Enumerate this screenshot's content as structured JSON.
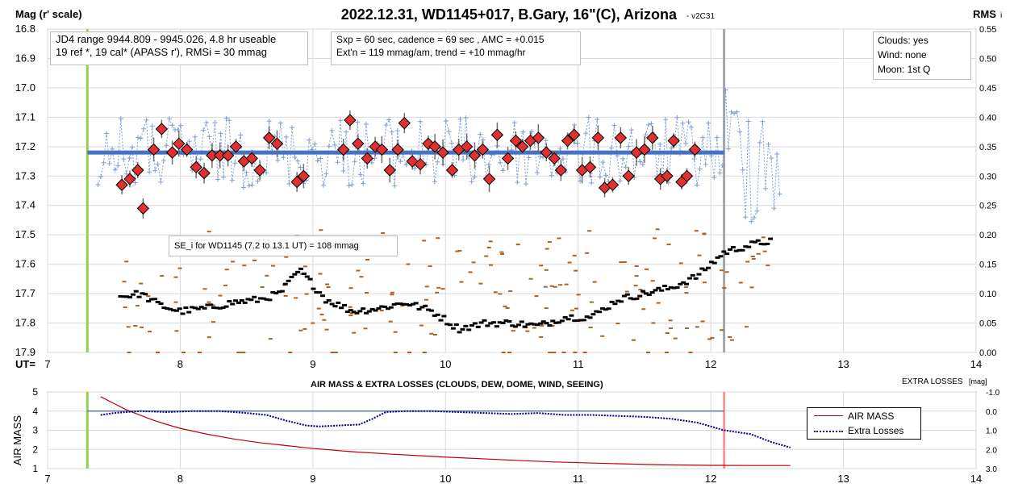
{
  "title": "2022.12.31, WD1145+017, B.Gary, 16\"(C), Arizona",
  "version": "- v2C31",
  "y_label_left": "Mag (r' scale)",
  "y_label_right": "RMS",
  "y_label_right_sub": "i",
  "x_axis_prefix": "UT=",
  "info_box_1": {
    "line1": "JD4 range 9944.809 - 9945.026, 4.8 hr useable",
    "line2": "19 ref *, 19 cal*  (APASS r'), RMSi = 30 mmag"
  },
  "info_box_2": {
    "line1": "Sxp = 60 sec, cadence = 69 sec , AMC = +0.015",
    "line2": "Ext'n = 119 mmag/am, trend = +10 mmag/hr"
  },
  "info_box_3": {
    "line1": "Clouds: yes",
    "line2": "Wind:    none",
    "line3": "Moon:    1st Q"
  },
  "se_box": "SE_i for WD1145 (7.2 to 13.1 UT) = 108 mmag",
  "bottom_title": "AIR MASS & EXTRA LOSSES (CLOUDS, DEW, DOME, WIND, SEEING)",
  "bottom_right_label": "EXTRA LOSSES",
  "bottom_right_unit": "[mag]",
  "bottom_left_label": "AIR MASS",
  "legend": {
    "airmass": "AIR MASS",
    "losses": "Extra Losses"
  },
  "colors": {
    "title_rule_left": "#92d050",
    "gray_rule": "#a6a6a6",
    "pink_rule": "#ff9999",
    "mean_line": "#4472c4",
    "diamond": "#e03030",
    "raw": "#7f9fd0",
    "rms_black": "#000000",
    "rms_brown": "#b06020",
    "airmass": "#c00000",
    "losses": "#00008b"
  },
  "chart_data": [
    {
      "type": "scatter",
      "title": "2022.12.31, WD1145+017, B.Gary, 16\"(C), Arizona",
      "xlabel": "UT=",
      "ylabel": "Mag (r' scale)",
      "y2label": "RMS i",
      "xlim": [
        7,
        14
      ],
      "ylim": [
        16.8,
        17.9
      ],
      "y_inverted": true,
      "y2lim": [
        0,
        0.55
      ],
      "x_ticks": [
        "7",
        "8",
        "9",
        "10",
        "11",
        "12",
        "13",
        "14"
      ],
      "y_ticks": [
        "16.8",
        "16.9",
        "17.0",
        "17.1",
        "17.2",
        "17.3",
        "17.4",
        "17.5",
        "17.6",
        "17.7",
        "17.8",
        "17.9"
      ],
      "y2_ticks": [
        "0.00",
        "0.05",
        "0.10",
        "0.15",
        "0.20",
        "0.25",
        "0.30",
        "0.35",
        "0.40",
        "0.45",
        "0.50",
        "0.55"
      ],
      "grid": true,
      "vertical_markers": [
        7.3,
        12.1
      ],
      "mean_line": {
        "y": 17.22,
        "x": [
          7.3,
          12.1
        ]
      },
      "binned": {
        "x": [
          7.56,
          7.62,
          7.68,
          7.72,
          7.8,
          7.86,
          7.94,
          7.99,
          8.05,
          8.12,
          8.18,
          8.24,
          8.3,
          8.36,
          8.42,
          8.48,
          8.54,
          8.6,
          8.67,
          8.73,
          9.23,
          9.28,
          9.34,
          9.41,
          9.47,
          9.52,
          9.58,
          9.64,
          9.69,
          9.75,
          9.81,
          9.87,
          9.92,
          9.98,
          10.05,
          10.1,
          10.16,
          10.22,
          10.28,
          10.33,
          10.39,
          10.47,
          10.53,
          10.58,
          10.64,
          10.7,
          10.76,
          10.82,
          10.87,
          10.92,
          10.97,
          11.03,
          11.09,
          11.15,
          11.2,
          11.26,
          11.32,
          11.38,
          11.44,
          11.5,
          11.56,
          11.62,
          11.67,
          11.72,
          11.78,
          11.82,
          11.88,
          8.88,
          8.93
        ],
        "y": [
          17.33,
          17.31,
          17.28,
          17.41,
          17.21,
          17.14,
          17.22,
          17.19,
          17.21,
          17.27,
          17.29,
          17.23,
          17.23,
          17.23,
          17.2,
          17.25,
          17.24,
          17.28,
          17.17,
          17.19,
          17.21,
          17.11,
          17.19,
          17.24,
          17.2,
          17.21,
          17.28,
          17.21,
          17.12,
          17.25,
          17.26,
          17.19,
          17.2,
          17.22,
          17.28,
          17.21,
          17.2,
          17.23,
          17.21,
          17.31,
          17.16,
          17.24,
          17.18,
          17.2,
          17.18,
          17.17,
          17.22,
          17.24,
          17.28,
          17.18,
          17.16,
          17.28,
          17.27,
          17.17,
          17.34,
          17.33,
          17.17,
          17.3,
          17.22,
          17.21,
          17.17,
          17.31,
          17.3,
          17.18,
          17.32,
          17.3,
          17.21,
          17.32,
          17.3
        ]
      },
      "raw_series": {
        "x_start": 7.38,
        "x_end": 12.52,
        "y_range": [
          16.96,
          17.67
        ]
      },
      "rms_series": {
        "x_start": 7.55,
        "x_end": 12.45,
        "y2_range": [
          0.05,
          0.2
        ]
      }
    },
    {
      "type": "line",
      "title": "AIR MASS & EXTRA LOSSES (CLOUDS, DEW, DOME, WIND, SEEING)",
      "xlabel": "",
      "ylabel": "AIR MASS",
      "y2label": "EXTRA LOSSES [mag]",
      "xlim": [
        7,
        14
      ],
      "ylim": [
        1,
        5
      ],
      "y2lim": [
        -1.0,
        3.0
      ],
      "y2_inverted": true,
      "x_ticks": [
        "7",
        "8",
        "9",
        "10",
        "11",
        "12",
        "13",
        "14"
      ],
      "y_ticks": [
        "1",
        "2",
        "3",
        "4",
        "5"
      ],
      "y2_ticks": [
        "-1.0",
        "0.0",
        "1.0",
        "2.0",
        "3.0"
      ],
      "legend_position": "right",
      "series": [
        {
          "name": "AIR MASS",
          "x": [
            7.4,
            7.5,
            7.6,
            7.7,
            7.8,
            7.9,
            8.0,
            8.2,
            8.4,
            8.6,
            8.8,
            9.0,
            9.3,
            9.6,
            10.0,
            10.4,
            10.8,
            11.2,
            11.6,
            12.0,
            12.3,
            12.6
          ],
          "values": [
            4.75,
            4.4,
            4.05,
            3.78,
            3.52,
            3.3,
            3.1,
            2.8,
            2.55,
            2.35,
            2.2,
            2.05,
            1.88,
            1.75,
            1.6,
            1.47,
            1.35,
            1.27,
            1.2,
            1.17,
            1.16,
            1.16
          ]
        },
        {
          "name": "Extra Losses",
          "x": [
            7.4,
            7.5,
            7.6,
            7.7,
            7.9,
            8.1,
            8.3,
            8.5,
            8.65,
            8.8,
            8.95,
            9.05,
            9.2,
            9.35,
            9.45,
            9.55,
            9.7,
            9.9,
            10.1,
            10.3,
            10.5,
            10.7,
            10.9,
            11.1,
            11.3,
            11.5,
            11.7,
            11.9,
            12.1,
            12.3,
            12.45,
            12.6
          ],
          "values": [
            0.2,
            0.1,
            0.05,
            0.0,
            0.05,
            0.0,
            0.0,
            0.1,
            0.2,
            0.5,
            0.75,
            0.8,
            0.75,
            0.7,
            0.4,
            0.05,
            0.0,
            0.0,
            0.05,
            0.1,
            0.15,
            0.1,
            0.2,
            0.2,
            0.25,
            0.3,
            0.4,
            0.6,
            1.0,
            1.2,
            1.6,
            1.9
          ]
        }
      ]
    }
  ]
}
